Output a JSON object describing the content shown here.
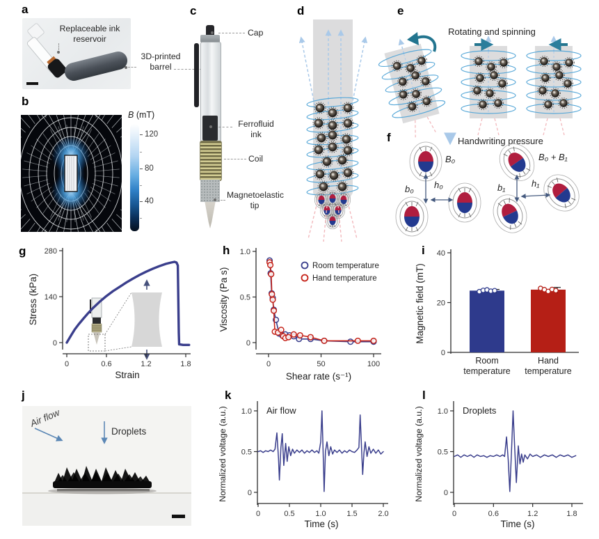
{
  "panels": {
    "a": {
      "letter": "a",
      "label_reservoir_line1": "Replaceable ink",
      "label_reservoir_line2": "reservoir",
      "label_barrel_line1": "3D-printed",
      "label_barrel_line2": "barrel"
    },
    "b": {
      "letter": "b",
      "colorbar_title_symbol": "B",
      "colorbar_title_unit": " (mT)",
      "colorbar_ticks": [
        "120",
        "80",
        "40"
      ]
    },
    "c": {
      "letter": "c",
      "label_cap": "Cap",
      "label_ink_line1": "Ferrofluid",
      "label_ink_line2": "ink",
      "label_coil": "Coil",
      "label_tip_line1": "Magnetoelastic",
      "label_tip_line2": "tip"
    },
    "d": {
      "letter": "d"
    },
    "e": {
      "letter": "e",
      "title": "Rotating and spinning"
    },
    "f": {
      "letter": "f",
      "title": "Handwriting pressure",
      "label_B0": "B₀",
      "label_b0": "b₀",
      "label_h0": "h₀",
      "label_B0B1": "B₀ + B₁",
      "label_b1": "b₁",
      "label_h1": "h₁"
    },
    "g": {
      "letter": "g"
    },
    "h": {
      "letter": "h"
    },
    "i": {
      "letter": "i"
    },
    "j": {
      "letter": "j",
      "label_airflow": "Air flow",
      "label_droplets": "Droplets"
    },
    "k": {
      "letter": "k"
    },
    "l": {
      "letter": "l"
    }
  },
  "chart_data": [
    {
      "id": "g",
      "type": "line",
      "title": "",
      "xlabel": "Strain",
      "ylabel": "Stress (kPa)",
      "xlim": [
        0,
        1.85
      ],
      "ylim": [
        -10,
        280
      ],
      "xticks": [
        "0",
        "0.6",
        "1.2",
        "1.8"
      ],
      "yticks": [
        "0",
        "140",
        "280"
      ],
      "series": [
        {
          "name": "stress-strain",
          "color": "#3a3e8c",
          "points": [
            [
              0,
              0
            ],
            [
              0.03,
              10
            ],
            [
              0.07,
              24
            ],
            [
              0.12,
              40
            ],
            [
              0.18,
              56
            ],
            [
              0.25,
              73
            ],
            [
              0.32,
              89
            ],
            [
              0.4,
              106
            ],
            [
              0.5,
              125
            ],
            [
              0.6,
              142
            ],
            [
              0.7,
              157
            ],
            [
              0.8,
              170
            ],
            [
              0.9,
              183
            ],
            [
              1.0,
              195
            ],
            [
              1.1,
              206
            ],
            [
              1.2,
              216
            ],
            [
              1.3,
              225
            ],
            [
              1.4,
              233
            ],
            [
              1.5,
              240
            ],
            [
              1.58,
              244
            ],
            [
              1.63,
              246
            ],
            [
              1.66,
              244
            ],
            [
              1.68,
              235
            ],
            [
              1.695,
              30
            ],
            [
              1.7,
              -5
            ],
            [
              1.76,
              -7
            ],
            [
              1.85,
              -7
            ]
          ]
        }
      ]
    },
    {
      "id": "h",
      "type": "scatter-line",
      "xlabel": "Shear rate (s⁻¹)",
      "ylabel": "Viscosity (Pa s)",
      "xlim": [
        0,
        105
      ],
      "ylim": [
        0,
        1.0
      ],
      "xticks": [
        "0",
        "50",
        "100"
      ],
      "yticks": [
        "0",
        "0.5",
        "1.0"
      ],
      "legend": [
        "Room temperature",
        "Hand temperature"
      ],
      "series": [
        {
          "name": "Room temperature",
          "color": "#3a3e8c",
          "marker": true,
          "points": [
            [
              1,
              0.9
            ],
            [
              2,
              0.76
            ],
            [
              3,
              0.54
            ],
            [
              4,
              0.49
            ],
            [
              5,
              0.36
            ],
            [
              7,
              0.25
            ],
            [
              10,
              0.1
            ],
            [
              13,
              0.08
            ],
            [
              16,
              0.09
            ],
            [
              20,
              0.08
            ],
            [
              24,
              0.07
            ],
            [
              29,
              0.04
            ],
            [
              40,
              0.04
            ],
            [
              53,
              0.02
            ],
            [
              78,
              0.01
            ],
            [
              100,
              0.01
            ]
          ]
        },
        {
          "name": "Hand temperature",
          "color": "#c52218",
          "marker": true,
          "points": [
            [
              1,
              0.88
            ],
            [
              1.7,
              0.85
            ],
            [
              2.5,
              0.75
            ],
            [
              3.2,
              0.53
            ],
            [
              4,
              0.47
            ],
            [
              5,
              0.35
            ],
            [
              6,
              0.12
            ],
            [
              9,
              0.11
            ],
            [
              12,
              0.14
            ],
            [
              14,
              0.07
            ],
            [
              16,
              0.05
            ],
            [
              19,
              0.06
            ],
            [
              24,
              0.09
            ],
            [
              30,
              0.08
            ],
            [
              40,
              0.06
            ],
            [
              53,
              0.02
            ],
            [
              85,
              0.02
            ],
            [
              100,
              0.02
            ]
          ]
        }
      ]
    },
    {
      "id": "i",
      "type": "bar",
      "ylabel": "Magnetic field (mT)",
      "ylim": [
        0,
        40
      ],
      "yticks": [
        "0",
        "20",
        "40"
      ],
      "categories": [
        [
          "Room",
          "temperature"
        ],
        [
          "Hand",
          "temperature"
        ]
      ],
      "values": [
        24.8,
        25.2
      ],
      "errors": [
        0.5,
        0.9
      ],
      "colors": [
        "#2e3a8c",
        "#b51f16"
      ],
      "dots": [
        [
          24.4,
          24.9,
          25.1,
          24.6,
          24.8
        ],
        [
          25.7,
          25.2,
          24.5,
          25.3,
          24.8
        ]
      ]
    },
    {
      "id": "k",
      "type": "line",
      "annotation": "Air flow",
      "xlabel": "Time (s)",
      "ylabel": "Normalized voltage (a.u.)",
      "xlim": [
        0,
        2.0
      ],
      "ylim": [
        0,
        1.05
      ],
      "xticks": [
        "0",
        "0.5",
        "1.0",
        "1.5",
        "2.0"
      ],
      "yticks": [
        "0",
        "0.5",
        "1.0"
      ],
      "series": [
        {
          "name": "air-flow-signal",
          "color": "#3a3e8c",
          "points": [
            [
              0,
              0.5
            ],
            [
              0.04,
              0.51
            ],
            [
              0.08,
              0.49
            ],
            [
              0.12,
              0.51
            ],
            [
              0.16,
              0.5
            ],
            [
              0.2,
              0.52
            ],
            [
              0.24,
              0.5
            ],
            [
              0.27,
              0.53
            ],
            [
              0.3,
              0.73
            ],
            [
              0.325,
              0.42
            ],
            [
              0.34,
              0.15
            ],
            [
              0.365,
              0.55
            ],
            [
              0.385,
              0.72
            ],
            [
              0.41,
              0.33
            ],
            [
              0.44,
              0.6
            ],
            [
              0.465,
              0.38
            ],
            [
              0.49,
              0.56
            ],
            [
              0.52,
              0.45
            ],
            [
              0.55,
              0.53
            ],
            [
              0.58,
              0.48
            ],
            [
              0.62,
              0.52
            ],
            [
              0.66,
              0.49
            ],
            [
              0.7,
              0.52
            ],
            [
              0.74,
              0.48
            ],
            [
              0.78,
              0.51
            ],
            [
              0.82,
              0.49
            ],
            [
              0.86,
              0.52
            ],
            [
              0.9,
              0.49
            ],
            [
              0.94,
              0.51
            ],
            [
              0.97,
              0.48
            ],
            [
              1.0,
              0.62
            ],
            [
              1.02,
              1.0
            ],
            [
              1.045,
              0.3
            ],
            [
              1.055,
              0.01
            ],
            [
              1.075,
              0.5
            ],
            [
              1.1,
              0.62
            ],
            [
              1.13,
              0.45
            ],
            [
              1.16,
              0.56
            ],
            [
              1.19,
              0.47
            ],
            [
              1.22,
              0.52
            ],
            [
              1.26,
              0.49
            ],
            [
              1.3,
              0.52
            ],
            [
              1.34,
              0.48
            ],
            [
              1.38,
              0.51
            ],
            [
              1.42,
              0.49
            ],
            [
              1.46,
              0.52
            ],
            [
              1.5,
              0.5
            ],
            [
              1.54,
              0.49
            ],
            [
              1.58,
              0.52
            ],
            [
              1.61,
              0.55
            ],
            [
              1.63,
              0.95
            ],
            [
              1.655,
              0.5
            ],
            [
              1.67,
              0.22
            ],
            [
              1.69,
              0.48
            ],
            [
              1.71,
              0.62
            ],
            [
              1.74,
              0.44
            ],
            [
              1.77,
              0.56
            ],
            [
              1.8,
              0.48
            ],
            [
              1.84,
              0.53
            ],
            [
              1.88,
              0.48
            ],
            [
              1.92,
              0.52
            ],
            [
              1.96,
              0.47
            ],
            [
              2.0,
              0.5
            ]
          ]
        }
      ]
    },
    {
      "id": "l",
      "type": "line",
      "annotation": "Droplets",
      "xlabel": "Time (s)",
      "ylabel": "Normalized voltage (a.u.)",
      "xlim": [
        0,
        1.86
      ],
      "ylim": [
        0,
        1.05
      ],
      "xticks": [
        "0",
        "0.6",
        "1.2",
        "1.8"
      ],
      "yticks": [
        "0",
        "0.5",
        "1.0"
      ],
      "series": [
        {
          "name": "droplets-signal",
          "color": "#3a3e8c",
          "points": [
            [
              0,
              0.44
            ],
            [
              0.05,
              0.46
            ],
            [
              0.1,
              0.43
            ],
            [
              0.15,
              0.46
            ],
            [
              0.2,
              0.44
            ],
            [
              0.25,
              0.46
            ],
            [
              0.3,
              0.43
            ],
            [
              0.35,
              0.46
            ],
            [
              0.4,
              0.44
            ],
            [
              0.45,
              0.45
            ],
            [
              0.5,
              0.43
            ],
            [
              0.55,
              0.45
            ],
            [
              0.6,
              0.44
            ],
            [
              0.65,
              0.46
            ],
            [
              0.7,
              0.44
            ],
            [
              0.74,
              0.46
            ],
            [
              0.77,
              0.44
            ],
            [
              0.8,
              0.68
            ],
            [
              0.825,
              0.4
            ],
            [
              0.85,
              0.01
            ],
            [
              0.875,
              0.5
            ],
            [
              0.9,
              1.0
            ],
            [
              0.925,
              0.55
            ],
            [
              0.95,
              0.12
            ],
            [
              0.98,
              0.57
            ],
            [
              1.005,
              0.35
            ],
            [
              1.03,
              0.47
            ],
            [
              1.055,
              0.37
            ],
            [
              1.08,
              0.46
            ],
            [
              1.12,
              0.41
            ],
            [
              1.16,
              0.47
            ],
            [
              1.2,
              0.44
            ],
            [
              1.26,
              0.46
            ],
            [
              1.32,
              0.43
            ],
            [
              1.38,
              0.46
            ],
            [
              1.44,
              0.44
            ],
            [
              1.5,
              0.46
            ],
            [
              1.56,
              0.43
            ],
            [
              1.62,
              0.46
            ],
            [
              1.68,
              0.44
            ],
            [
              1.74,
              0.46
            ],
            [
              1.8,
              0.43
            ],
            [
              1.86,
              0.45
            ]
          ]
        }
      ]
    }
  ]
}
